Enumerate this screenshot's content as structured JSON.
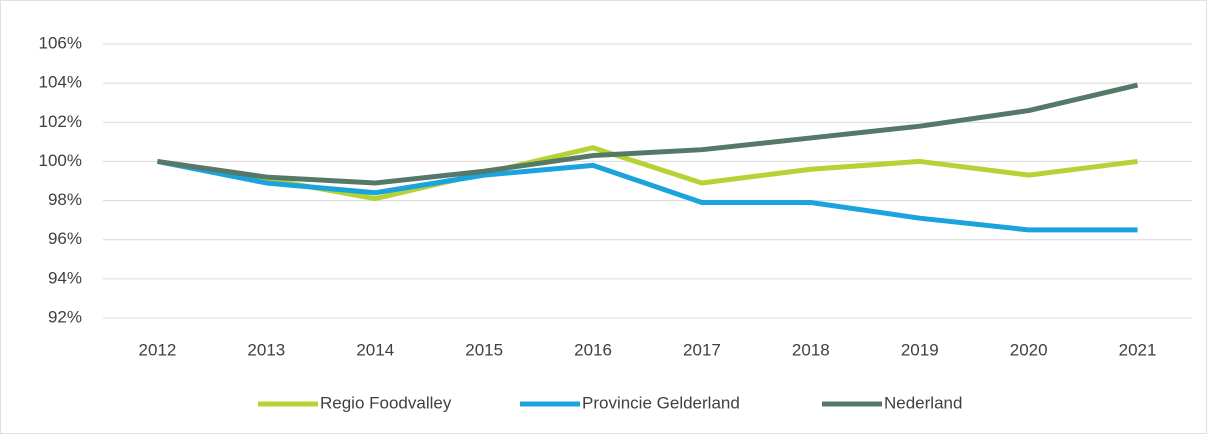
{
  "chart_data": {
    "type": "line",
    "categories": [
      "2012",
      "2013",
      "2014",
      "2015",
      "2016",
      "2017",
      "2018",
      "2019",
      "2020",
      "2021"
    ],
    "series": [
      {
        "name": "Regio Foodvalley",
        "color": "#b5d334",
        "values": [
          100,
          99.1,
          98.1,
          99.4,
          100.7,
          98.9,
          99.6,
          100,
          99.3,
          100
        ]
      },
      {
        "name": "Provincie Gelderland",
        "color": "#1aa3dc",
        "values": [
          100,
          98.9,
          98.4,
          99.3,
          99.8,
          97.9,
          97.9,
          97.1,
          96.5,
          96.5
        ]
      },
      {
        "name": "Nederland",
        "color": "#557867",
        "values": [
          100,
          99.2,
          98.9,
          99.5,
          100.3,
          100.6,
          101.2,
          101.8,
          102.6,
          103.9
        ]
      }
    ],
    "ylim": [
      92,
      106
    ],
    "yticks": [
      {
        "value": 92,
        "label": "92%"
      },
      {
        "value": 94,
        "label": "94%"
      },
      {
        "value": 96,
        "label": "96%"
      },
      {
        "value": 98,
        "label": "98%"
      },
      {
        "value": 100,
        "label": "100%"
      },
      {
        "value": 102,
        "label": "102%"
      },
      {
        "value": 104,
        "label": "104%"
      },
      {
        "value": 106,
        "label": "106%"
      }
    ],
    "grid": true,
    "legend": "bottom"
  }
}
